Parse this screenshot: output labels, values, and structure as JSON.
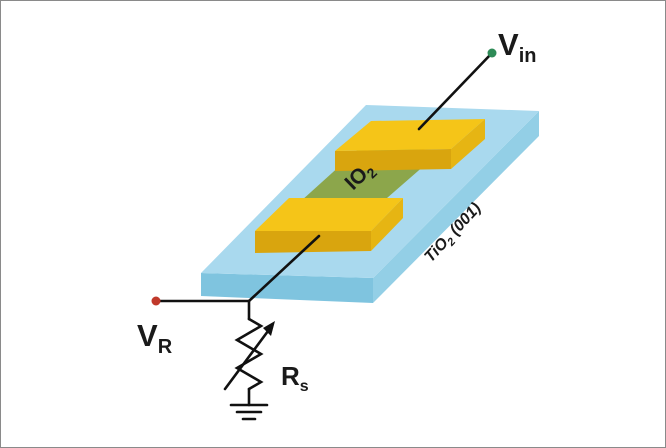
{
  "labels": {
    "v_in_main": "V",
    "v_in_sub": "in",
    "v_r_main": "V",
    "v_r_sub": "R",
    "r_s_main": "R",
    "r_s_sub": "s",
    "channel_main": "IO",
    "channel_sub": "2",
    "substrate_main": "TiO",
    "substrate_sub": "2",
    "substrate_suffix": " (001)"
  },
  "colors": {
    "substrate_top": "#a9d9ee",
    "substrate_front": "#7fc4df",
    "substrate_side": "#93cfe6",
    "electrode_top": "#f5c518",
    "electrode_front": "#d9a50e",
    "electrode_side": "#e6b513",
    "channel_top": "#8ca64b",
    "channel_front": "#6f8a36",
    "wire": "#111111",
    "v_in_terminal": "#2e8b57",
    "v_r_terminal": "#c0392b"
  }
}
